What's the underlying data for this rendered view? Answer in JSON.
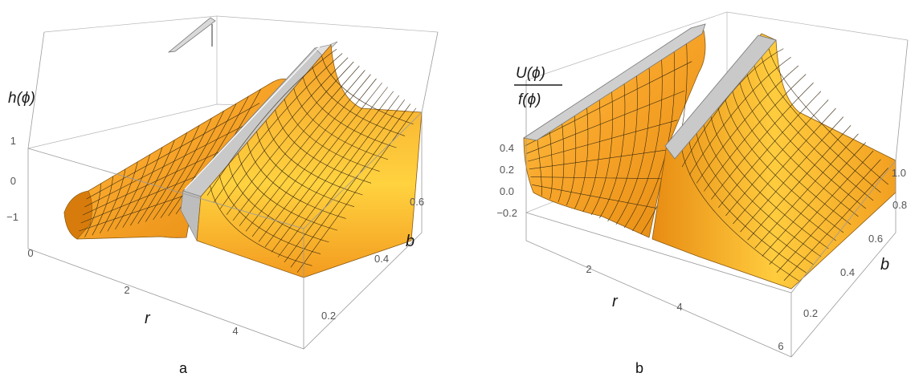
{
  "panels": [
    {
      "caption": "a",
      "ylabel": "h(ϕ)",
      "xlabel": "r",
      "blabel": "b",
      "chart_data": {
        "type": "surface3d",
        "x": {
          "label": "r",
          "range": [
            0,
            5.5
          ],
          "ticks": [
            "0",
            "2",
            "4"
          ]
        },
        "y": {
          "label": "b",
          "range": [
            0.05,
            0.7
          ],
          "ticks": [
            "0.2",
            "0.4",
            "0.6"
          ]
        },
        "z": {
          "label": "h(ϕ)",
          "range": [
            -1.8,
            1.0
          ],
          "ticks": [
            "1",
            "0",
            "−1"
          ]
        },
        "colors": {
          "surface": "#F5A623",
          "highlight": "#FFD84A",
          "mesh": "#3a2a10",
          "singular_face": "#c8c8c8"
        }
      }
    },
    {
      "caption": "b",
      "ylabel_num": "U(ϕ)",
      "ylabel_den": "f(ϕ)",
      "xlabel": "r",
      "blabel": "b",
      "chart_data": {
        "type": "surface3d",
        "x": {
          "label": "r",
          "range": [
            0,
            6
          ],
          "ticks": [
            "2",
            "4",
            "6"
          ]
        },
        "y": {
          "label": "b",
          "range": [
            0.05,
            1.05
          ],
          "ticks": [
            "0.2",
            "0.4",
            "0.6",
            "0.8",
            "1.0"
          ]
        },
        "z": {
          "label": "U(ϕ)/f(ϕ)",
          "range": [
            -0.35,
            0.45
          ],
          "ticks": [
            "0.4",
            "0.2",
            "0.0",
            "−0.2"
          ]
        },
        "colors": {
          "surface": "#F5A623",
          "highlight": "#FFD84A",
          "mesh": "#3a2a10",
          "singular_face": "#c8c8c8"
        }
      }
    }
  ]
}
